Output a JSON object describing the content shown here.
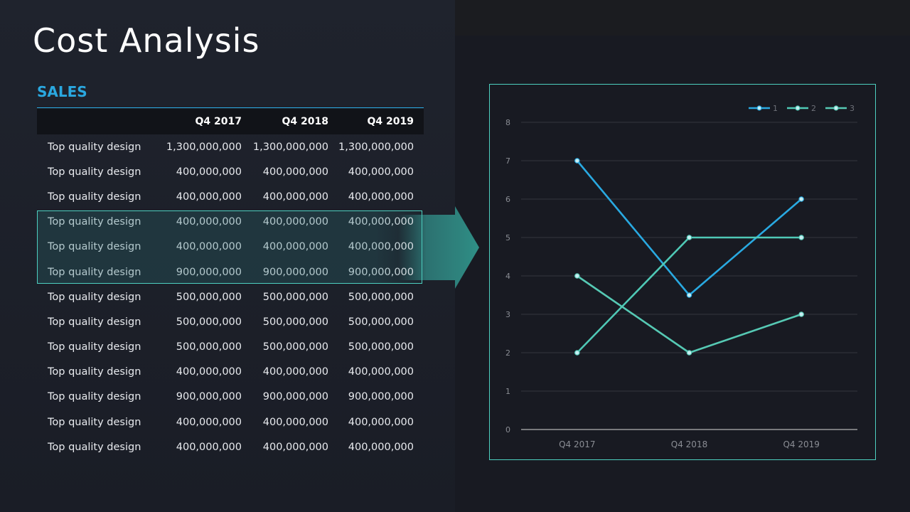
{
  "slide": {
    "title": "Cost Analysis",
    "section_label": "SALES"
  },
  "table": {
    "headers": [
      "",
      "Q4 2017",
      "Q4 2018",
      "Q4 2019"
    ],
    "rows": [
      [
        "Top quality design",
        "1,300,000,000",
        "1,300,000,000",
        "1,300,000,000"
      ],
      [
        "Top quality design",
        "400,000,000",
        "400,000,000",
        "400,000,000"
      ],
      [
        "Top quality design",
        "400,000,000",
        "400,000,000",
        "400,000,000"
      ],
      [
        "Top quality design",
        "400,000,000",
        "400,000,000",
        "400,000,000"
      ],
      [
        "Top quality design",
        "400,000,000",
        "400,000,000",
        "400,000,000"
      ],
      [
        "Top quality design",
        "900,000,000",
        "900,000,000",
        "900,000,000"
      ],
      [
        "Top quality design",
        "500,000,000",
        "500,000,000",
        "500,000,000"
      ],
      [
        "Top quality design",
        "500,000,000",
        "500,000,000",
        "500,000,000"
      ],
      [
        "Top quality design",
        "500,000,000",
        "500,000,000",
        "500,000,000"
      ],
      [
        "Top quality design",
        "400,000,000",
        "400,000,000",
        "400,000,000"
      ],
      [
        "Top quality design",
        "900,000,000",
        "900,000,000",
        "900,000,000"
      ],
      [
        "Top quality design",
        "400,000,000",
        "400,000,000",
        "400,000,000"
      ],
      [
        "Top quality design",
        "400,000,000",
        "400,000,000",
        "400,000,000"
      ]
    ],
    "highlighted_rows": [
      3,
      4,
      5
    ]
  },
  "colors": {
    "accent_blue": "#2aa8e0",
    "accent_teal": "#4dd0c0",
    "series_1": "#29a9e1",
    "series_2": "#4fc9b6",
    "series_3": "#56c9b4"
  },
  "chart_data": {
    "type": "line",
    "categories": [
      "Q4 2017",
      "Q4 2018",
      "Q4 2019"
    ],
    "series": [
      {
        "name": "1",
        "values": [
          7,
          3.5,
          6
        ]
      },
      {
        "name": "2",
        "values": [
          2,
          5,
          5
        ]
      },
      {
        "name": "3",
        "values": [
          4,
          2,
          3
        ]
      }
    ],
    "ylim": [
      0,
      8
    ],
    "yticks": [
      0,
      1,
      2,
      3,
      4,
      5,
      6,
      7,
      8
    ],
    "grid": true,
    "legend": "top-right",
    "markers": true
  }
}
